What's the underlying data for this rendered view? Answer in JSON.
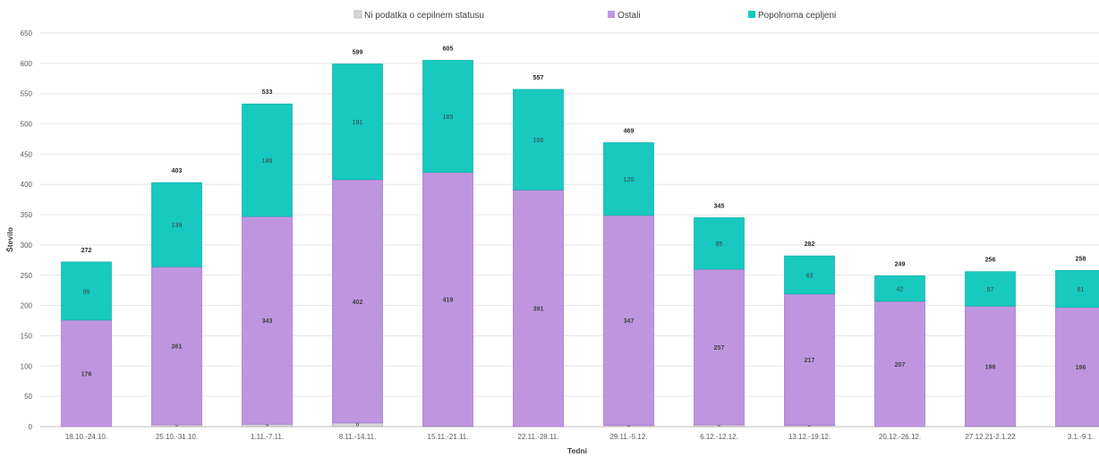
{
  "chart_data": {
    "type": "bar",
    "stacked": true,
    "xlabel": "Tedni",
    "ylabel": "Število",
    "ylim": [
      0,
      650
    ],
    "yticks": [
      0,
      50,
      100,
      150,
      200,
      250,
      300,
      350,
      400,
      450,
      500,
      550,
      600,
      650
    ],
    "grid": true,
    "legend_position": "top",
    "categories": [
      "18.10.-24.10.",
      "25.10.-31.10.",
      "1.11.-7.11.",
      "8.11.-14.11.",
      "15.11.-21.11.",
      "22.11.-28.11.",
      "29.11.-5.12.",
      "6.12.-12.12.",
      "13.12.-19.12.",
      "20.12.-26.12.",
      "27.12.21-2.1.22",
      "3.1.-9.1."
    ],
    "series": [
      {
        "name": "Ni podatka o cepilnem statusu",
        "color": "#d9d9d9",
        "values": [
          0,
          3,
          4,
          6,
          1,
          0,
          2,
          3,
          2,
          0,
          1,
          1
        ]
      },
      {
        "name": "Ostali",
        "color": "#bf95e0",
        "values": [
          176,
          261,
          343,
          402,
          419,
          391,
          347,
          257,
          217,
          207,
          198,
          196
        ]
      },
      {
        "name": "Popolnoma cepljeni",
        "color": "#17c9be",
        "values": [
          96,
          139,
          186,
          191,
          185,
          166,
          120,
          85,
          63,
          42,
          57,
          61
        ]
      }
    ],
    "totals": [
      272,
      403,
      533,
      599,
      605,
      557,
      469,
      345,
      282,
      249,
      256,
      258
    ]
  }
}
